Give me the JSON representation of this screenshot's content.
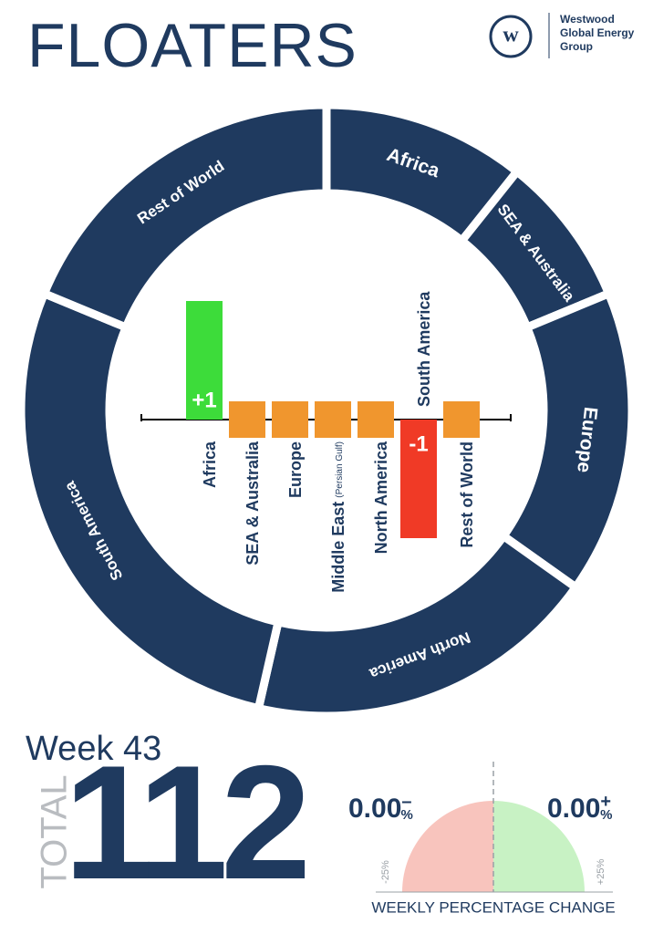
{
  "header": {
    "title": "FLOATERS",
    "logo_initial": "w",
    "company": [
      "Westwood",
      "Global Energy",
      "Group"
    ]
  },
  "chart_data": [
    {
      "type": "pie",
      "donut": true,
      "color": "#1f3a5f",
      "label_color": "#ffffff",
      "categories": [
        "Africa",
        "SEA & Australia",
        "Europe",
        "North America",
        "South America",
        "Rest of World"
      ],
      "values": [
        12,
        9,
        18,
        21,
        31,
        21
      ]
    },
    {
      "type": "bar",
      "categories": [
        "Africa",
        "SEA & Australia",
        "Europe",
        "Middle East",
        "North America",
        "South America",
        "Rest of World"
      ],
      "category_notes": [
        null,
        null,
        null,
        "(Persian Gulf)",
        null,
        null,
        null
      ],
      "values": [
        1,
        0,
        0,
        0,
        0,
        -1,
        0
      ],
      "value_labels": [
        "+1",
        null,
        null,
        null,
        null,
        "-1",
        null
      ],
      "colors": {
        "positive": "#3ddc3a",
        "negative": "#f03a26",
        "zero": "#f0962e"
      }
    }
  ],
  "footer": {
    "week": "Week 43",
    "total_label": "TOTAL",
    "total": "112",
    "gauge": {
      "title": "WEEKLY PERCENTAGE CHANGE",
      "decrease": {
        "value": 0,
        "label": "0.00",
        "unit": "%",
        "sign": "–",
        "color": "#f8c4bd"
      },
      "increase": {
        "value": 0,
        "label": "0.00",
        "unit": "%",
        "sign": "+",
        "color": "#c8f2c4"
      },
      "range": [
        {
          "value": -25,
          "label": "-25%"
        },
        {
          "value": 25,
          "label": "+25%"
        }
      ]
    }
  }
}
